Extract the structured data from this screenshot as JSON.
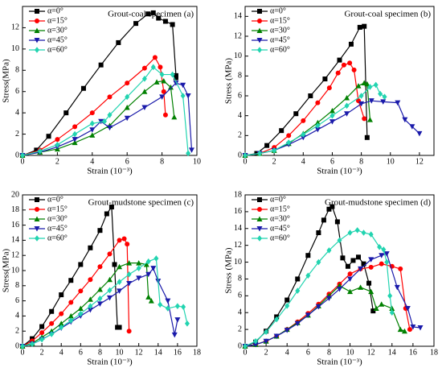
{
  "chart_data": [
    {
      "type": "line",
      "title": "Grout-coal specimen (a)",
      "xlabel": "Strain (10⁻³)",
      "ylabel": "Stress(MPa)",
      "xlim": [
        0,
        10
      ],
      "ylim": [
        0,
        14
      ],
      "xticks": [
        0,
        2,
        4,
        6,
        8,
        10
      ],
      "yticks": [
        0,
        2,
        4,
        6,
        8,
        10,
        12
      ],
      "legend": "upper-left",
      "series": [
        {
          "name": "α=0°",
          "color": "#000000",
          "marker": "square",
          "x": [
            0,
            0.8,
            1.5,
            2.5,
            3.5,
            4.5,
            5.5,
            6.5,
            7.2,
            7.5,
            7.8,
            8.2,
            8.6,
            8.8,
            8.8
          ],
          "values": [
            0,
            0.5,
            1.8,
            4,
            6.3,
            8.5,
            10.6,
            12.4,
            13.3,
            13.4,
            12.9,
            12.6,
            12.3,
            7.5,
            7.3
          ]
        },
        {
          "name": "α=15°",
          "color": "#ff0000",
          "marker": "circle",
          "x": [
            0,
            1,
            2,
            3,
            4,
            5,
            6,
            7,
            7.6,
            7.9,
            8.1,
            8.2
          ],
          "values": [
            0,
            0.5,
            1.5,
            2.7,
            4,
            5.5,
            6.8,
            8.2,
            9.2,
            8.3,
            6,
            3.8
          ]
        },
        {
          "name": "α=30°",
          "color": "#008000",
          "marker": "triangle-up",
          "x": [
            0,
            1,
            2,
            3,
            4,
            5,
            6,
            7,
            7.7,
            8.1,
            8.5,
            8.7
          ],
          "values": [
            0,
            0.3,
            0.6,
            1.2,
            1.9,
            2.8,
            4.5,
            6,
            6.9,
            7,
            6.4,
            3.6
          ]
        },
        {
          "name": "α=45°",
          "color": "#1a1aaa",
          "marker": "triangle-down",
          "x": [
            0,
            1,
            2,
            3,
            4,
            4.5,
            5,
            6,
            7,
            8,
            8.8,
            9.2,
            9.5,
            9.7
          ],
          "values": [
            0,
            0.3,
            0.8,
            1.5,
            2.4,
            3.2,
            2.6,
            3.5,
            4.5,
            5.5,
            6.8,
            6.6,
            5.6,
            0.5
          ]
        },
        {
          "name": "α=60°",
          "color": "#22d4b0",
          "marker": "diamond",
          "x": [
            0,
            1,
            2,
            3,
            4,
            4.7,
            5,
            6,
            7,
            7.5,
            8,
            8.6,
            9.2,
            9.5
          ],
          "values": [
            0,
            0.4,
            1,
            2,
            3,
            3.2,
            3.8,
            5.5,
            7.2,
            8.3,
            7.6,
            7.6,
            5.6,
            0.2
          ]
        }
      ]
    },
    {
      "type": "line",
      "title": "Grout-coal specimen (b)",
      "xlabel": "Strain (10⁻³)",
      "ylabel": "Stress (MPa)",
      "xlim": [
        0,
        13
      ],
      "ylim": [
        0,
        15
      ],
      "xticks": [
        0,
        2,
        4,
        6,
        8,
        10,
        12
      ],
      "yticks": [
        0,
        2,
        4,
        6,
        8,
        10,
        12,
        14
      ],
      "legend": "upper-left",
      "series": [
        {
          "name": "α=0°",
          "color": "#000000",
          "marker": "square",
          "x": [
            0,
            0.8,
            1.5,
            2.5,
            3.5,
            4.5,
            5.5,
            6.5,
            7.3,
            7.9,
            8.2,
            8.4
          ],
          "values": [
            0,
            0.2,
            1,
            2.5,
            4.2,
            6,
            7.7,
            9.6,
            11.2,
            12.9,
            13,
            1.8
          ]
        },
        {
          "name": "α=15°",
          "color": "#ff0000",
          "marker": "circle",
          "x": [
            0,
            1,
            2,
            3,
            4,
            5,
            5.8,
            6.4,
            6.8,
            7.2,
            7.5,
            7.8,
            8.2
          ],
          "values": [
            0,
            0.2,
            0.8,
            2,
            3.5,
            5.3,
            6.8,
            8.3,
            9.1,
            9.3,
            8.6,
            5.5,
            3.7
          ]
        },
        {
          "name": "α=30°",
          "color": "#008000",
          "marker": "triangle-up",
          "x": [
            0,
            1,
            2,
            3,
            4,
            5,
            6,
            7,
            7.8,
            8.2,
            8.4,
            8.6
          ],
          "values": [
            0,
            0.2,
            0.5,
            1.2,
            2.2,
            3.3,
            4.5,
            5.8,
            7,
            7.3,
            7.2,
            3.6
          ]
        },
        {
          "name": "α=45°",
          "color": "#1a1aaa",
          "marker": "triangle-down",
          "x": [
            0,
            1,
            2,
            3,
            4,
            5,
            6,
            7,
            8,
            8.7,
            9.5,
            10.5,
            11,
            11.5,
            12
          ],
          "values": [
            0,
            0.2,
            0.5,
            1.1,
            1.8,
            2.6,
            3.4,
            4.2,
            5.2,
            5.5,
            5.4,
            5.3,
            3.6,
            2.9,
            2.2
          ]
        },
        {
          "name": "α=60°",
          "color": "#22d4b0",
          "marker": "diamond",
          "x": [
            0,
            1,
            2,
            3,
            4,
            5,
            6,
            7,
            8,
            8.6,
            9,
            9.3,
            9.6
          ],
          "values": [
            0,
            0.2,
            0.5,
            1.3,
            2.1,
            3,
            4,
            5,
            6,
            6.9,
            7.1,
            6.2,
            5.9
          ]
        }
      ]
    },
    {
      "type": "line",
      "title": "Grout-mudstone specimen (c)",
      "xlabel": "Strain (10⁻³)",
      "ylabel": "Stress(MPa)",
      "xlim": [
        0,
        18
      ],
      "ylim": [
        0,
        20
      ],
      "xticks": [
        0,
        2,
        4,
        6,
        8,
        10,
        12,
        14,
        16,
        18
      ],
      "yticks": [
        0,
        2,
        4,
        6,
        8,
        10,
        12,
        14,
        16,
        18,
        20
      ],
      "legend": "upper-left",
      "series": [
        {
          "name": "α=0°",
          "color": "#000000",
          "marker": "square",
          "x": [
            0,
            1,
            2,
            3,
            4,
            5,
            6,
            7,
            8,
            8.7,
            9.2,
            9.5,
            9.8,
            10
          ],
          "values": [
            0,
            1,
            2.6,
            4.6,
            6.8,
            8.7,
            10.8,
            13,
            15.3,
            17.5,
            18.4,
            10.8,
            2.5,
            2.5
          ]
        },
        {
          "name": "α=15°",
          "color": "#ff0000",
          "marker": "circle",
          "x": [
            0,
            1,
            2,
            3,
            4,
            5,
            6,
            7,
            8,
            9,
            10,
            10.5,
            10.8,
            11
          ],
          "values": [
            0,
            0.7,
            1.8,
            3,
            4.3,
            5.8,
            7.3,
            8.8,
            10.5,
            12.2,
            14,
            14.2,
            13.5,
            2
          ]
        },
        {
          "name": "α=30°",
          "color": "#008000",
          "marker": "triangle-up",
          "x": [
            0,
            1,
            2,
            3,
            4,
            5,
            6,
            7,
            8,
            9,
            10,
            11,
            12,
            12.8,
            13,
            13.3
          ],
          "values": [
            0,
            0.4,
            1.2,
            2,
            3,
            4,
            5,
            6.2,
            7.5,
            8.8,
            10.5,
            11,
            11,
            10.8,
            6.5,
            6
          ]
        },
        {
          "name": "α=45°",
          "color": "#1a1aaa",
          "marker": "triangle-down",
          "x": [
            0,
            1,
            2,
            3,
            4,
            5,
            6,
            7,
            8,
            9,
            10,
            11,
            12,
            13,
            13.5,
            14,
            15,
            15.7,
            16
          ],
          "values": [
            0,
            0.3,
            0.9,
            1.6,
            2.4,
            3.2,
            4,
            4.8,
            5.6,
            6.4,
            7.3,
            8.3,
            9,
            9.5,
            10.3,
            8.6,
            6,
            1.5,
            3.5
          ]
        },
        {
          "name": "α=60°",
          "color": "#22d4b0",
          "marker": "diamond",
          "x": [
            0,
            1,
            2,
            3,
            4,
            5,
            6,
            7,
            8,
            9,
            10,
            11,
            12,
            13,
            13.8,
            14.2,
            15,
            16,
            16.6,
            17
          ],
          "values": [
            0,
            0.3,
            0.9,
            1.6,
            2.5,
            3.4,
            4.3,
            5.3,
            6.3,
            7.4,
            8.5,
            9.5,
            10.3,
            11.2,
            11.6,
            5.5,
            5,
            5.3,
            5.2,
            3
          ]
        }
      ]
    },
    {
      "type": "line",
      "title": "Grout-mudstone specimen (d)",
      "xlabel": "Strain (10⁻³)",
      "ylabel": "Stress (MPa)",
      "xlim": [
        0,
        18
      ],
      "ylim": [
        0,
        18
      ],
      "xticks": [
        0,
        2,
        4,
        6,
        8,
        10,
        12,
        14,
        16,
        18
      ],
      "yticks": [
        0,
        2,
        4,
        6,
        8,
        10,
        12,
        14,
        16,
        18
      ],
      "legend": "upper-left",
      "series": [
        {
          "name": "α=0°",
          "color": "#000000",
          "marker": "square",
          "x": [
            0,
            1,
            2,
            3,
            4,
            5,
            6,
            7,
            7.5,
            8,
            8.3,
            8.8,
            9.3,
            9.8,
            10.3,
            10.8,
            11.3,
            11.8,
            12.2
          ],
          "values": [
            0,
            0.5,
            1.8,
            3.5,
            5.5,
            8,
            10.8,
            13.5,
            15,
            16.3,
            16.6,
            14.8,
            10.5,
            9.5,
            10.2,
            10.6,
            9.8,
            7.5,
            4.2
          ]
        },
        {
          "name": "α=15°",
          "color": "#ff0000",
          "marker": "circle",
          "x": [
            0,
            1,
            2,
            3,
            4,
            5,
            6,
            7,
            8,
            9,
            10,
            11,
            12,
            13,
            14,
            14.8,
            15.3,
            15.7
          ],
          "values": [
            0,
            0.2,
            0.6,
            1.2,
            2,
            2.9,
            3.9,
            5,
            6.2,
            7.4,
            8.6,
            9.2,
            9.4,
            9.8,
            9.5,
            9.2,
            4.5,
            2
          ]
        },
        {
          "name": "α=30°",
          "color": "#008000",
          "marker": "triangle-up",
          "x": [
            0,
            1,
            2,
            3,
            4,
            5,
            6,
            7,
            8,
            9,
            10,
            11,
            12,
            12.5,
            13,
            14,
            14.8,
            15.2
          ],
          "values": [
            0,
            0.2,
            0.6,
            1.2,
            2,
            2.8,
            3.7,
            4.8,
            6,
            7.2,
            6.5,
            7,
            6.5,
            4.5,
            5,
            4.5,
            2,
            1.8
          ]
        },
        {
          "name": "α=45°",
          "color": "#1a1aaa",
          "marker": "triangle-down",
          "x": [
            0,
            1,
            2,
            3,
            4,
            5,
            6,
            7,
            8,
            9,
            10,
            11,
            12,
            13,
            13.5,
            14.5,
            15.5,
            16,
            16.7
          ],
          "values": [
            0,
            0.2,
            0.6,
            1.2,
            1.9,
            2.7,
            3.7,
            4.7,
            5.7,
            6.8,
            8,
            9.2,
            10.3,
            10.8,
            11,
            7,
            4.5,
            2.3,
            2.2
          ]
        },
        {
          "name": "α=60°",
          "color": "#22d4b0",
          "marker": "diamond",
          "x": [
            0,
            1,
            2,
            3,
            4,
            5,
            6,
            7,
            8,
            9,
            10,
            10.7,
            11.3,
            12,
            12.8,
            13.2,
            13.5,
            13.8,
            14
          ],
          "values": [
            0,
            0.6,
            1.7,
            3.2,
            4.8,
            6.6,
            8.4,
            10,
            11.4,
            12.6,
            13.5,
            13.8,
            13.5,
            13.3,
            11.8,
            11.5,
            10,
            6,
            4
          ]
        }
      ]
    }
  ]
}
